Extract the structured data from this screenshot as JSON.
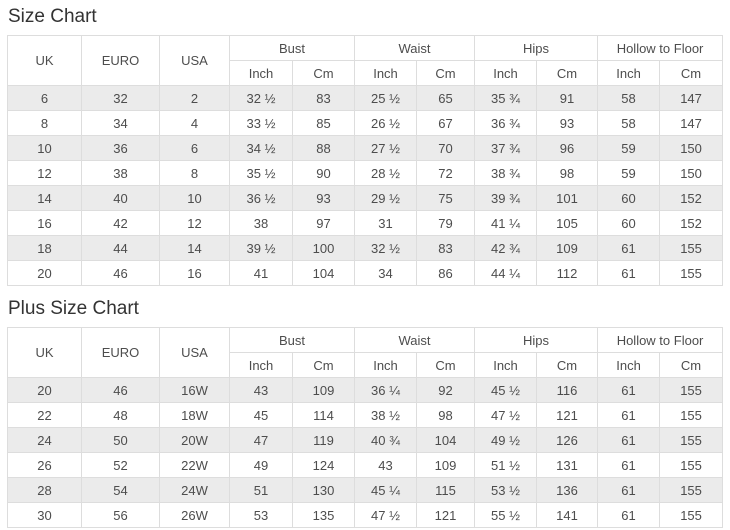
{
  "colors": {
    "title_text": "#333333",
    "cell_text": "#4d4d4d",
    "border": "#dddddd",
    "stripe_row_background": "#ebebeb",
    "background": "#ffffff"
  },
  "tables": [
    {
      "title": "Size Chart",
      "simple_headers": [
        "UK",
        "EURO",
        "USA"
      ],
      "group_headers": [
        "Bust",
        "Waist",
        "Hips",
        "Hollow to Floor"
      ],
      "sub_headers": [
        "Inch",
        "Cm"
      ],
      "rows": [
        [
          "6",
          "32",
          "2",
          "32 ½",
          "83",
          "25 ½",
          "65",
          "35 ¾",
          "91",
          "58",
          "147"
        ],
        [
          "8",
          "34",
          "4",
          "33 ½",
          "85",
          "26 ½",
          "67",
          "36 ¾",
          "93",
          "58",
          "147"
        ],
        [
          "10",
          "36",
          "6",
          "34 ½",
          "88",
          "27 ½",
          "70",
          "37 ¾",
          "96",
          "59",
          "150"
        ],
        [
          "12",
          "38",
          "8",
          "35 ½",
          "90",
          "28 ½",
          "72",
          "38 ¾",
          "98",
          "59",
          "150"
        ],
        [
          "14",
          "40",
          "10",
          "36 ½",
          "93",
          "29 ½",
          "75",
          "39 ¾",
          "101",
          "60",
          "152"
        ],
        [
          "16",
          "42",
          "12",
          "38",
          "97",
          "31",
          "79",
          "41 ¼",
          "105",
          "60",
          "152"
        ],
        [
          "18",
          "44",
          "14",
          "39 ½",
          "100",
          "32 ½",
          "83",
          "42 ¾",
          "109",
          "61",
          "155"
        ],
        [
          "20",
          "46",
          "16",
          "41",
          "104",
          "34",
          "86",
          "44 ¼",
          "112",
          "61",
          "155"
        ]
      ]
    },
    {
      "title": "Plus Size Chart",
      "simple_headers": [
        "UK",
        "EURO",
        "USA"
      ],
      "group_headers": [
        "Bust",
        "Waist",
        "Hips",
        "Hollow to Floor"
      ],
      "sub_headers": [
        "Inch",
        "Cm"
      ],
      "rows": [
        [
          "20",
          "46",
          "16W",
          "43",
          "109",
          "36 ¼",
          "92",
          "45 ½",
          "116",
          "61",
          "155"
        ],
        [
          "22",
          "48",
          "18W",
          "45",
          "114",
          "38 ½",
          "98",
          "47 ½",
          "121",
          "61",
          "155"
        ],
        [
          "24",
          "50",
          "20W",
          "47",
          "119",
          "40 ¾",
          "104",
          "49 ½",
          "126",
          "61",
          "155"
        ],
        [
          "26",
          "52",
          "22W",
          "49",
          "124",
          "43",
          "109",
          "51 ½",
          "131",
          "61",
          "155"
        ],
        [
          "28",
          "54",
          "24W",
          "51",
          "130",
          "45 ¼",
          "115",
          "53 ½",
          "136",
          "61",
          "155"
        ],
        [
          "30",
          "56",
          "26W",
          "53",
          "135",
          "47 ½",
          "121",
          "55 ½",
          "141",
          "61",
          "155"
        ]
      ]
    }
  ]
}
